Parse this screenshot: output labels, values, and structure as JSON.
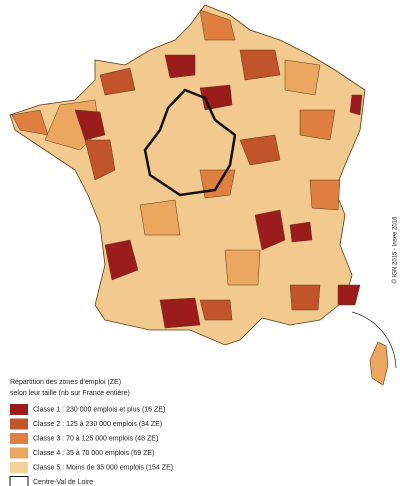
{
  "legend": {
    "title": [
      "Répartition des zones d'emploi (ZE)",
      "selon leur taille (nb sur France entière)"
    ],
    "items": [
      {
        "label": "Classe 1 : 230 000 emplois et plus (16 ZE)",
        "color": "#9b1c1c"
      },
      {
        "label": "Classe 2 : 125 à 230 000 emplois (34 ZE)",
        "color": "#c1542a"
      },
      {
        "label": "Classe 3 : 70 à 125 000 emplois (48 ZE)",
        "color": "#de7f3f"
      },
      {
        "label": "Classe 4 : 35 à 70 000 emplois (69 ZE)",
        "color": "#eba660"
      },
      {
        "label": "Classe 5 : Moins de 35 000 emplois (154 ZE)",
        "color": "#f5d196"
      },
      {
        "label": "Centre-Val de Loire",
        "color": "#ffffff"
      }
    ]
  },
  "credit": "© IGN 2015 - Insee 2016"
}
